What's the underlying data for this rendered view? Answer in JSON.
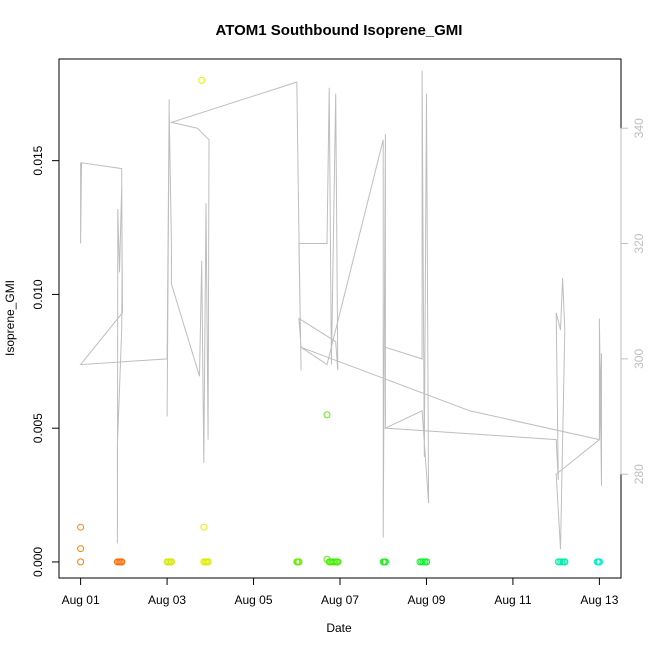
{
  "chart_data": {
    "type": "scatter",
    "title": "ATOM1 Southbound Isoprene_GMI",
    "xlabel": "Date",
    "ylabel": "Isoprene_GMI",
    "x_ticks": [
      "Aug 01",
      "Aug 03",
      "Aug 05",
      "Aug 07",
      "Aug 09",
      "Aug 11",
      "Aug 13"
    ],
    "y_ticks": [
      "0.000",
      "0.005",
      "0.010",
      "0.015"
    ],
    "y2_ticks": [
      "280",
      "300",
      "320",
      "340"
    ],
    "xlim_days": [
      0.5,
      13.5
    ],
    "ylim": [
      -0.0006,
      0.0188
    ],
    "y2lim": [
      262,
      352
    ],
    "grid": false,
    "series": [
      {
        "color_scale": "time (orange → yellow → green → cyan)",
        "points": [
          {
            "x": 1.0,
            "y": 0.0013,
            "color": "#FF8800"
          },
          {
            "x": 1.0,
            "y": 0.0005,
            "color": "#FF8800"
          },
          {
            "x": 1.0,
            "y": 0.0,
            "color": "#FF7A00"
          },
          {
            "x": 1.85,
            "y": 0.0,
            "color": "#FF6A00"
          },
          {
            "x": 1.95,
            "y": 0.0,
            "color": "#FF6A00"
          },
          {
            "x": 3.0,
            "y": 0.0,
            "color": "#D4E800"
          },
          {
            "x": 3.1,
            "y": 0.0,
            "color": "#D4E800"
          },
          {
            "x": 3.8,
            "y": 0.018,
            "color": "#E6F000"
          },
          {
            "x": 3.85,
            "y": 0.0013,
            "color": "#E6F000"
          },
          {
            "x": 3.85,
            "y": 0.0,
            "color": "#DDEB00"
          },
          {
            "x": 3.95,
            "y": 0.0,
            "color": "#DDEB00"
          },
          {
            "x": 6.0,
            "y": 0.0,
            "color": "#66EE00"
          },
          {
            "x": 6.05,
            "y": 0.0,
            "color": "#66EE00"
          },
          {
            "x": 6.7,
            "y": 0.0055,
            "color": "#55EE00"
          },
          {
            "x": 6.7,
            "y": 0.0001,
            "color": "#55EE00"
          },
          {
            "x": 6.75,
            "y": 0.0,
            "color": "#44EE00"
          },
          {
            "x": 6.95,
            "y": 0.0,
            "color": "#44EE00"
          },
          {
            "x": 8.0,
            "y": 0.0,
            "color": "#22EE22"
          },
          {
            "x": 8.05,
            "y": 0.0,
            "color": "#22EE22"
          },
          {
            "x": 8.85,
            "y": 0.0,
            "color": "#11EE33"
          },
          {
            "x": 9.0,
            "y": 0.0,
            "color": "#11EE33"
          },
          {
            "x": 12.05,
            "y": 0.0,
            "color": "#00EEAA"
          },
          {
            "x": 12.2,
            "y": 0.0,
            "color": "#00EEAA"
          },
          {
            "x": 12.95,
            "y": 0.0,
            "color": "#00F0C8"
          },
          {
            "x": 13.0,
            "y": 0.0,
            "color": "#00F0C8"
          }
        ]
      },
      {
        "axis": "right",
        "color": "#BEBEBE",
        "line_points": [
          [
            1.0,
            334
          ],
          [
            1.0,
            320
          ],
          [
            1.02,
            334
          ],
          [
            1.95,
            333
          ],
          [
            1.96,
            315
          ],
          [
            1.95,
            305
          ],
          [
            1.85,
            285
          ],
          [
            1.85,
            268
          ],
          [
            1.86,
            326
          ],
          [
            1.9,
            315
          ],
          [
            1.95,
            330
          ],
          [
            1.97,
            308
          ],
          [
            1.0,
            299
          ],
          [
            3.0,
            300
          ],
          [
            3.05,
            345
          ],
          [
            3.0,
            290
          ],
          [
            3.05,
            343
          ],
          [
            3.1,
            320
          ],
          [
            3.1,
            313
          ],
          [
            3.75,
            297
          ],
          [
            3.8,
            317
          ],
          [
            3.85,
            282
          ],
          [
            3.9,
            327
          ],
          [
            3.95,
            286
          ],
          [
            3.97,
            338
          ],
          [
            3.7,
            340
          ],
          [
            3.1,
            341
          ],
          [
            6.0,
            348
          ],
          [
            6.05,
            322
          ],
          [
            6.1,
            298
          ],
          [
            6.05,
            320
          ],
          [
            6.7,
            320
          ],
          [
            6.75,
            347
          ],
          [
            6.8,
            299
          ],
          [
            6.9,
            346
          ],
          [
            6.95,
            298
          ],
          [
            6.9,
            303
          ],
          [
            6.05,
            307
          ],
          [
            6.1,
            302
          ],
          [
            6.7,
            299
          ],
          [
            8.0,
            338
          ],
          [
            8.0,
            269
          ],
          [
            8.05,
            339
          ],
          [
            8.05,
            288
          ],
          [
            8.05,
            302
          ],
          [
            8.9,
            300
          ],
          [
            8.9,
            350
          ],
          [
            8.95,
            283
          ],
          [
            9.0,
            346
          ],
          [
            9.05,
            275
          ],
          [
            8.9,
            291
          ],
          [
            8.05,
            288
          ],
          [
            12.0,
            286
          ],
          [
            12.05,
            279
          ],
          [
            12.0,
            308
          ],
          [
            12.1,
            305
          ],
          [
            12.15,
            314
          ],
          [
            12.2,
            305
          ],
          [
            12.1,
            267
          ],
          [
            12.0,
            280
          ],
          [
            13.0,
            286
          ],
          [
            13.0,
            307
          ],
          [
            13.05,
            278
          ],
          [
            13.05,
            301
          ],
          [
            13.0,
            286
          ],
          [
            10.0,
            291
          ],
          [
            6.1,
            302
          ]
        ]
      }
    ]
  }
}
